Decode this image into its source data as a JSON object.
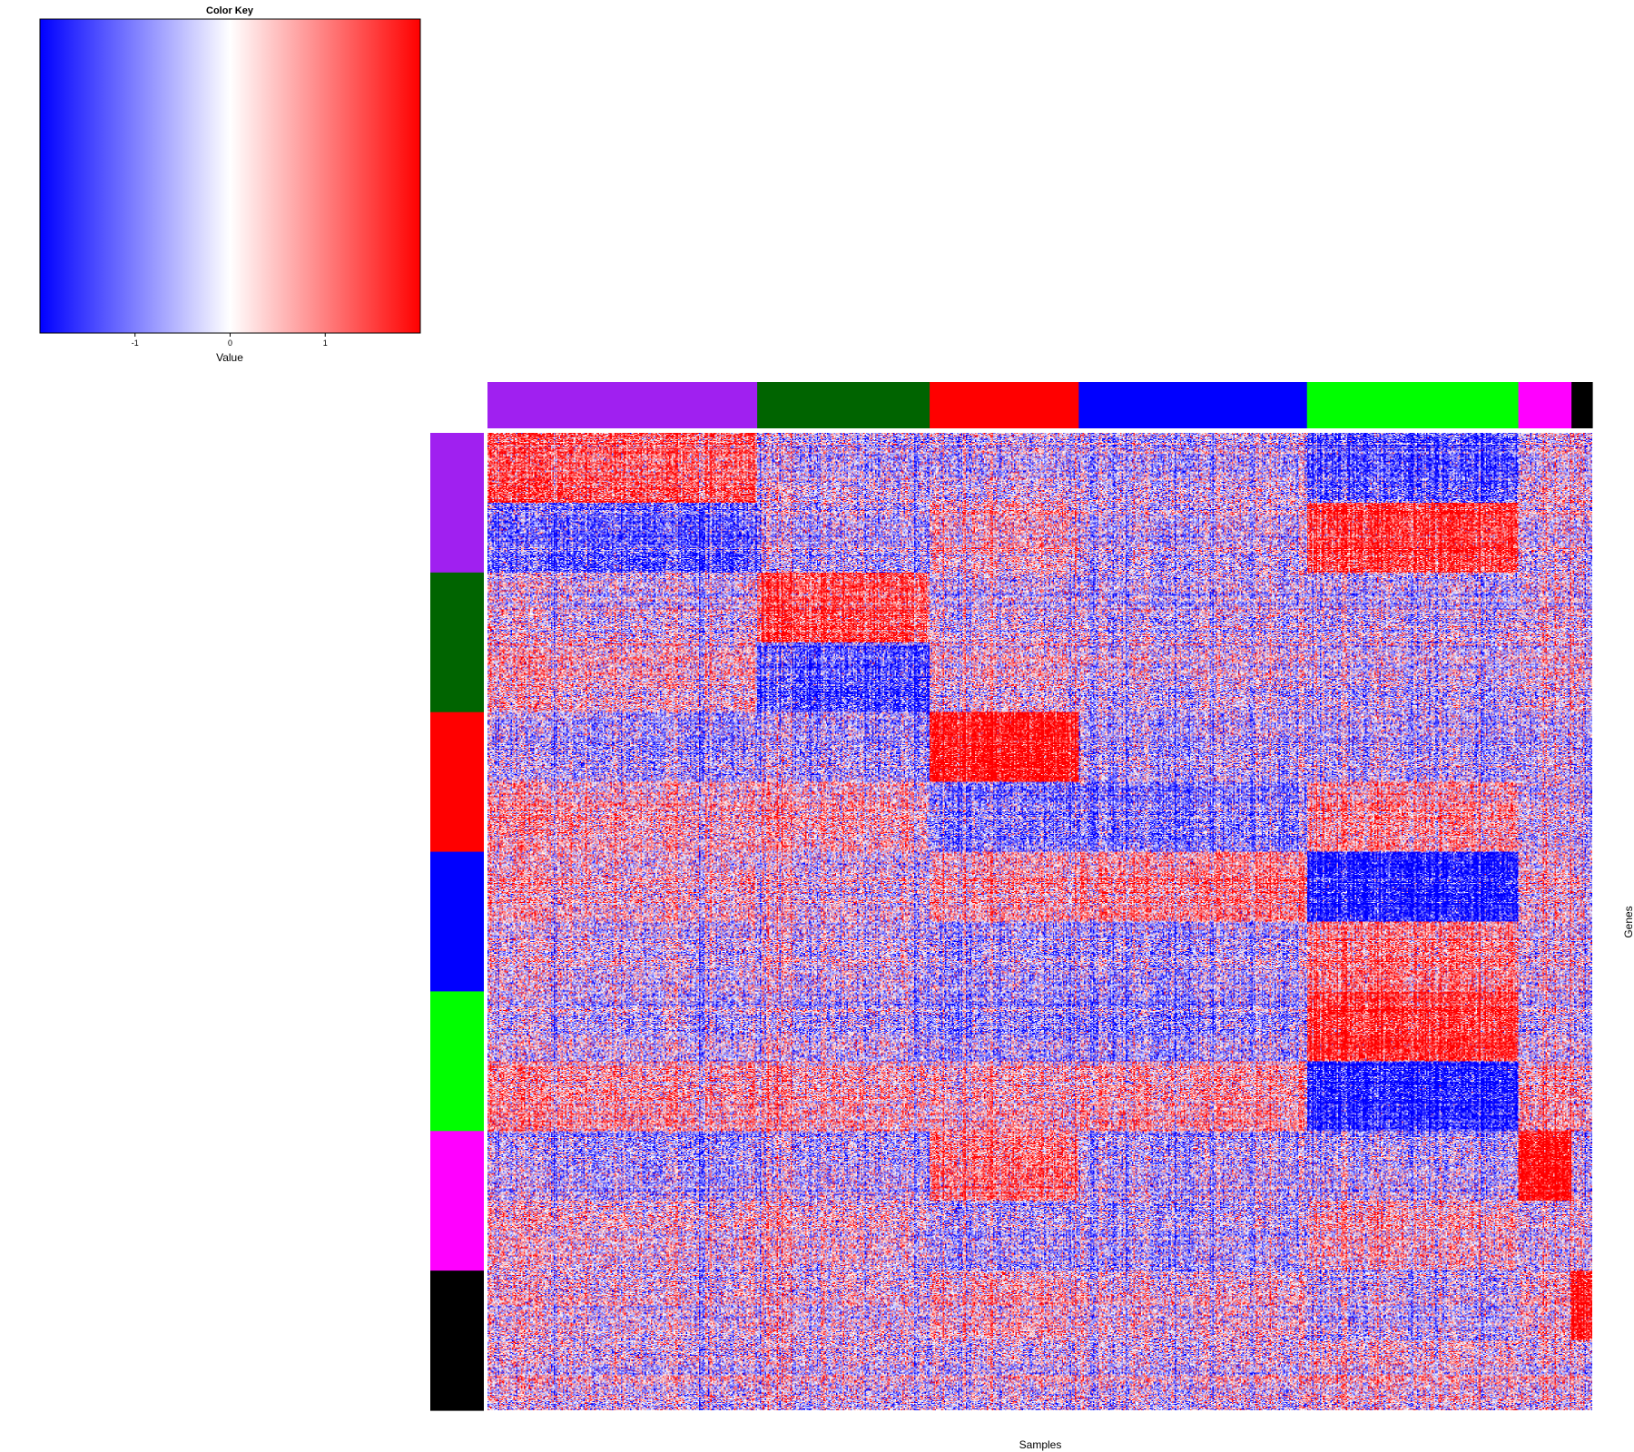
{
  "chart_data": {
    "type": "heatmap",
    "color_key": {
      "title": "Color Key",
      "xlabel": "Value",
      "ticks": [
        -1,
        0,
        1
      ],
      "tick_labels": [
        "-1",
        "0",
        "1"
      ],
      "range": [
        -2,
        2
      ],
      "low_color": "#0000ff",
      "mid_color": "#ffffff",
      "high_color": "#ff0000"
    },
    "xlabel": "Samples",
    "ylabel": "Genes",
    "column_groups": [
      {
        "name": "purple",
        "color": "#a020f0",
        "size": 208
      },
      {
        "name": "darkgreen",
        "color": "#006400",
        "size": 133
      },
      {
        "name": "red",
        "color": "#ff0000",
        "size": 115
      },
      {
        "name": "blue",
        "color": "#0000ff",
        "size": 176
      },
      {
        "name": "green",
        "color": "#00ff00",
        "size": 163
      },
      {
        "name": "magenta",
        "color": "#ff00ff",
        "size": 41
      },
      {
        "name": "black",
        "color": "#000000",
        "size": 16
      }
    ],
    "row_groups": [
      {
        "name": "purple",
        "color": "#a020f0",
        "size": 2
      },
      {
        "name": "darkgreen",
        "color": "#006400",
        "size": 2
      },
      {
        "name": "red",
        "color": "#ff0000",
        "size": 2
      },
      {
        "name": "blue",
        "color": "#0000ff",
        "size": 2
      },
      {
        "name": "green",
        "color": "#00ff00",
        "size": 2
      },
      {
        "name": "magenta",
        "color": "#ff00ff",
        "size": 2
      },
      {
        "name": "black",
        "color": "#000000",
        "size": 2
      }
    ],
    "block_means": [
      [
        0.9,
        -0.2,
        -0.1,
        -0.2,
        -0.9,
        -0.1,
        0.0
      ],
      [
        -0.9,
        -0.3,
        0.3,
        -0.2,
        1.2,
        -0.2,
        -0.1
      ],
      [
        -0.1,
        1.0,
        -0.1,
        -0.2,
        -0.2,
        -0.1,
        -0.1
      ],
      [
        0.2,
        -1.0,
        0.1,
        -0.1,
        -0.2,
        -0.1,
        0.0
      ],
      [
        -0.4,
        -0.4,
        1.6,
        -0.3,
        -0.3,
        -0.3,
        -0.3
      ],
      [
        0.3,
        0.3,
        -0.6,
        -0.6,
        0.5,
        -0.2,
        -0.2
      ],
      [
        0.2,
        0.0,
        0.4,
        0.6,
        -1.4,
        0.1,
        0.0
      ],
      [
        -0.1,
        -0.1,
        -0.3,
        -0.3,
        0.7,
        -0.1,
        -0.1
      ],
      [
        -0.2,
        -0.2,
        -0.4,
        -0.4,
        1.3,
        -0.2,
        -0.2
      ],
      [
        0.4,
        0.3,
        0.3,
        0.4,
        -1.4,
        0.3,
        0.2
      ],
      [
        -0.4,
        -0.3,
        0.7,
        -0.3,
        -0.3,
        1.6,
        -0.3
      ],
      [
        0.1,
        0.1,
        -0.3,
        -0.3,
        0.3,
        -0.2,
        0.0
      ],
      [
        0.0,
        0.0,
        0.3,
        0.1,
        -0.2,
        0.1,
        1.6
      ],
      [
        -0.1,
        -0.1,
        -0.1,
        -0.1,
        0.1,
        -0.1,
        -0.1
      ]
    ],
    "rows_per_band": 78
  }
}
